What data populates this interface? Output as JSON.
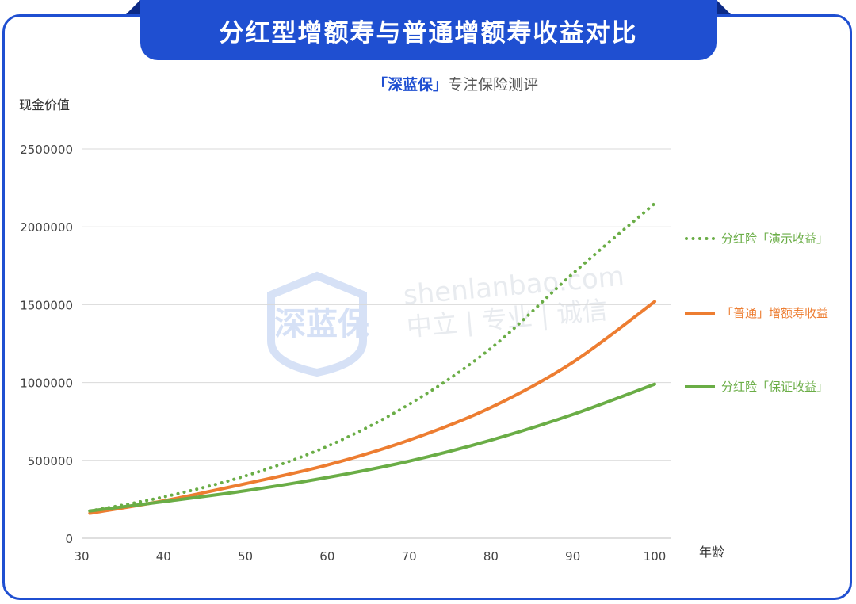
{
  "header": {
    "title": "分红型增额寿与普通增额寿收益对比",
    "subtitle_brand": "「深蓝保」",
    "subtitle_text": "专注保险测评"
  },
  "watermark": {
    "logo_text": "深蓝保",
    "line1": "shenlanbao.com",
    "line2": "中立 | 专业 | 诚信"
  },
  "colors": {
    "brand_blue": "#1f4fd1",
    "green": "#6aad46",
    "orange": "#ed7d31",
    "grid": "#d9d9d9"
  },
  "chart_data": {
    "type": "line",
    "ylabel": "现金价值",
    "xlabel": "年龄",
    "xlim": [
      30,
      100
    ],
    "ylim": [
      0,
      2500000
    ],
    "x_ticks": [
      30,
      40,
      50,
      60,
      70,
      80,
      90,
      100
    ],
    "y_ticks": [
      0,
      500000,
      1000000,
      1500000,
      2000000,
      2500000
    ],
    "grid": true,
    "legend_position": "right",
    "series": [
      {
        "name": "分红险「演示收益」",
        "style": "dotted",
        "color": "#6aad46",
        "x": [
          31,
          40,
          50,
          60,
          70,
          80,
          90,
          100
        ],
        "y": [
          175000,
          265000,
          400000,
          590000,
          860000,
          1220000,
          1700000,
          2150000
        ]
      },
      {
        "name": "「普通」增额寿收益",
        "style": "solid",
        "color": "#ed7d31",
        "x": [
          31,
          40,
          50,
          60,
          70,
          80,
          90,
          100
        ],
        "y": [
          160000,
          240000,
          350000,
          470000,
          630000,
          840000,
          1130000,
          1520000
        ]
      },
      {
        "name": "分红险「保证收益」",
        "style": "solid",
        "color": "#6aad46",
        "x": [
          31,
          40,
          50,
          60,
          70,
          80,
          90,
          100
        ],
        "y": [
          175000,
          235000,
          305000,
          390000,
          495000,
          630000,
          795000,
          990000
        ]
      }
    ]
  }
}
